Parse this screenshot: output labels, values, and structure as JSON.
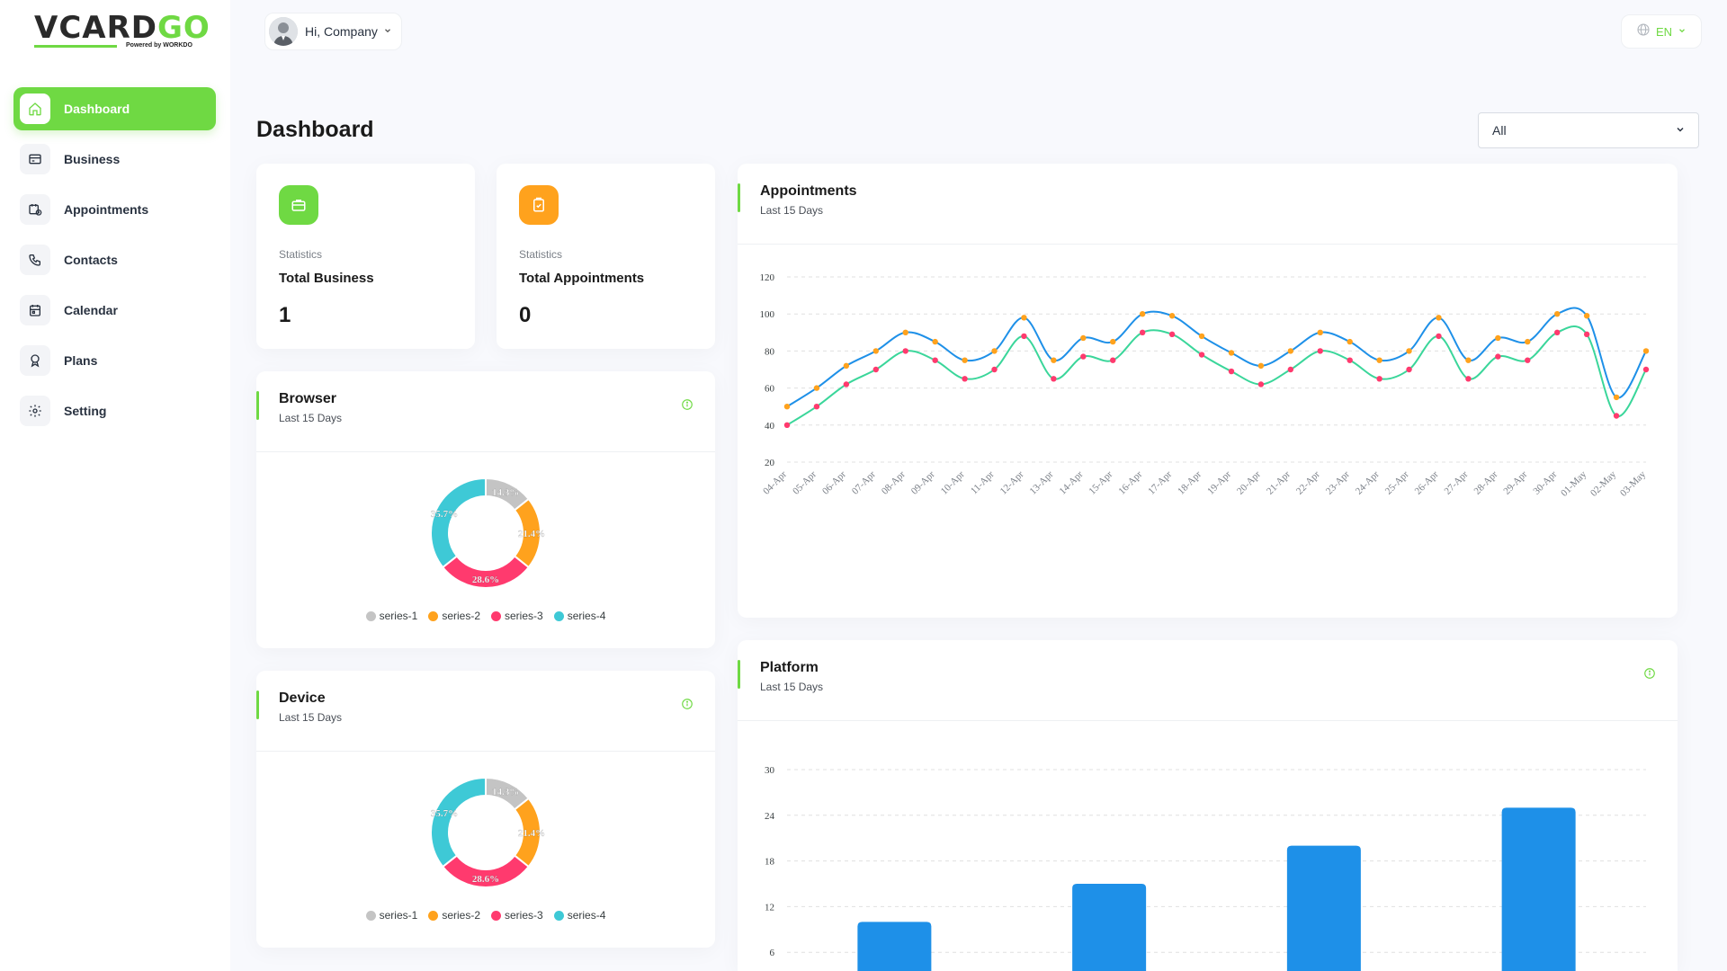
{
  "logo": {
    "text_a": "VCARD",
    "text_b": "GO",
    "powered": "Powered by WORKDO"
  },
  "sidebar": {
    "items": [
      {
        "label": "Dashboard",
        "icon": "home-icon",
        "active": true
      },
      {
        "label": "Business",
        "icon": "card-icon"
      },
      {
        "label": "Appointments",
        "icon": "calendar-clock-icon"
      },
      {
        "label": "Contacts",
        "icon": "phone-icon"
      },
      {
        "label": "Calendar",
        "icon": "calendar-icon"
      },
      {
        "label": "Plans",
        "icon": "award-icon"
      },
      {
        "label": "Setting",
        "icon": "gear-icon"
      }
    ]
  },
  "header": {
    "user_label": "Hi, Company",
    "lang_label": "EN"
  },
  "main": {
    "title": "Dashboard",
    "filter_value": "All",
    "stats": [
      {
        "caption": "Statistics",
        "title": "Total Business",
        "value": "1",
        "color": "#6fd943"
      },
      {
        "caption": "Statistics",
        "title": "Total Appointments",
        "value": "0",
        "color": "#ffa21d"
      }
    ]
  },
  "cards": {
    "appointments": {
      "title": "Appointments",
      "subtitle": "Last 15 Days"
    },
    "browser": {
      "title": "Browser",
      "subtitle": "Last 15 Days"
    },
    "device": {
      "title": "Device",
      "subtitle": "Last 15 Days"
    },
    "platform": {
      "title": "Platform",
      "subtitle": "Last 15 Days"
    }
  },
  "colors": {
    "accent": "#6fd943",
    "orange": "#ffa21d",
    "blue": "#3ec9d6",
    "series_blue": "#1e90e8",
    "series_green": "#3ad69a"
  },
  "chart_data": [
    {
      "type": "line",
      "title": "Appointments",
      "x": [
        "04-Apr",
        "05-Apr",
        "06-Apr",
        "07-Apr",
        "08-Apr",
        "09-Apr",
        "10-Apr",
        "11-Apr",
        "12-Apr",
        "13-Apr",
        "14-Apr",
        "15-Apr",
        "16-Apr",
        "17-Apr",
        "18-Apr",
        "19-Apr",
        "20-Apr",
        "21-Apr",
        "22-Apr",
        "23-Apr",
        "24-Apr",
        "25-Apr",
        "26-Apr",
        "27-Apr",
        "28-Apr",
        "29-Apr",
        "30-Apr",
        "01-May",
        "02-May",
        "03-May"
      ],
      "series": [
        {
          "values": [
            50,
            60,
            72,
            80,
            90,
            85,
            75,
            80,
            98,
            75,
            87,
            85,
            100,
            99,
            88,
            79,
            72,
            80,
            90,
            85,
            75,
            80,
            98,
            75,
            87,
            85,
            100,
            99,
            55,
            80
          ]
        },
        {
          "values": [
            40,
            50,
            62,
            70,
            80,
            75,
            65,
            70,
            88,
            65,
            77,
            75,
            90,
            89,
            78,
            69,
            62,
            70,
            80,
            75,
            65,
            70,
            88,
            65,
            77,
            75,
            90,
            89,
            45,
            70
          ]
        }
      ],
      "ylim": [
        20,
        120
      ],
      "yticks": [
        20,
        40,
        60,
        80,
        100,
        120
      ],
      "grid": true
    },
    {
      "type": "pie",
      "title": "Browser",
      "categories": [
        "series-1",
        "series-2",
        "series-3",
        "series-4"
      ],
      "values": [
        14.3,
        21.4,
        28.6,
        35.7
      ],
      "labels": [
        "14.3%",
        "21.4%",
        "28.6%",
        "35.7%"
      ],
      "colors": [
        "#c4c4c4",
        "#ffa21d",
        "#ff3a6e",
        "#3ec9d6"
      ]
    },
    {
      "type": "pie",
      "title": "Device",
      "categories": [
        "series-1",
        "series-2",
        "series-3",
        "series-4"
      ],
      "values": [
        14.3,
        21.4,
        28.6,
        35.7
      ],
      "labels": [
        "14.3%",
        "21.4%",
        "28.6%",
        "35.7%"
      ],
      "colors": [
        "#c4c4c4",
        "#ffa21d",
        "#ff3a6e",
        "#3ec9d6"
      ]
    },
    {
      "type": "bar",
      "title": "Platform",
      "values": [
        10,
        15,
        20,
        25
      ],
      "ylim": [
        0,
        30
      ],
      "yticks": [
        6,
        12,
        18,
        24,
        30
      ],
      "color": "#1e90e8",
      "grid": true
    }
  ]
}
